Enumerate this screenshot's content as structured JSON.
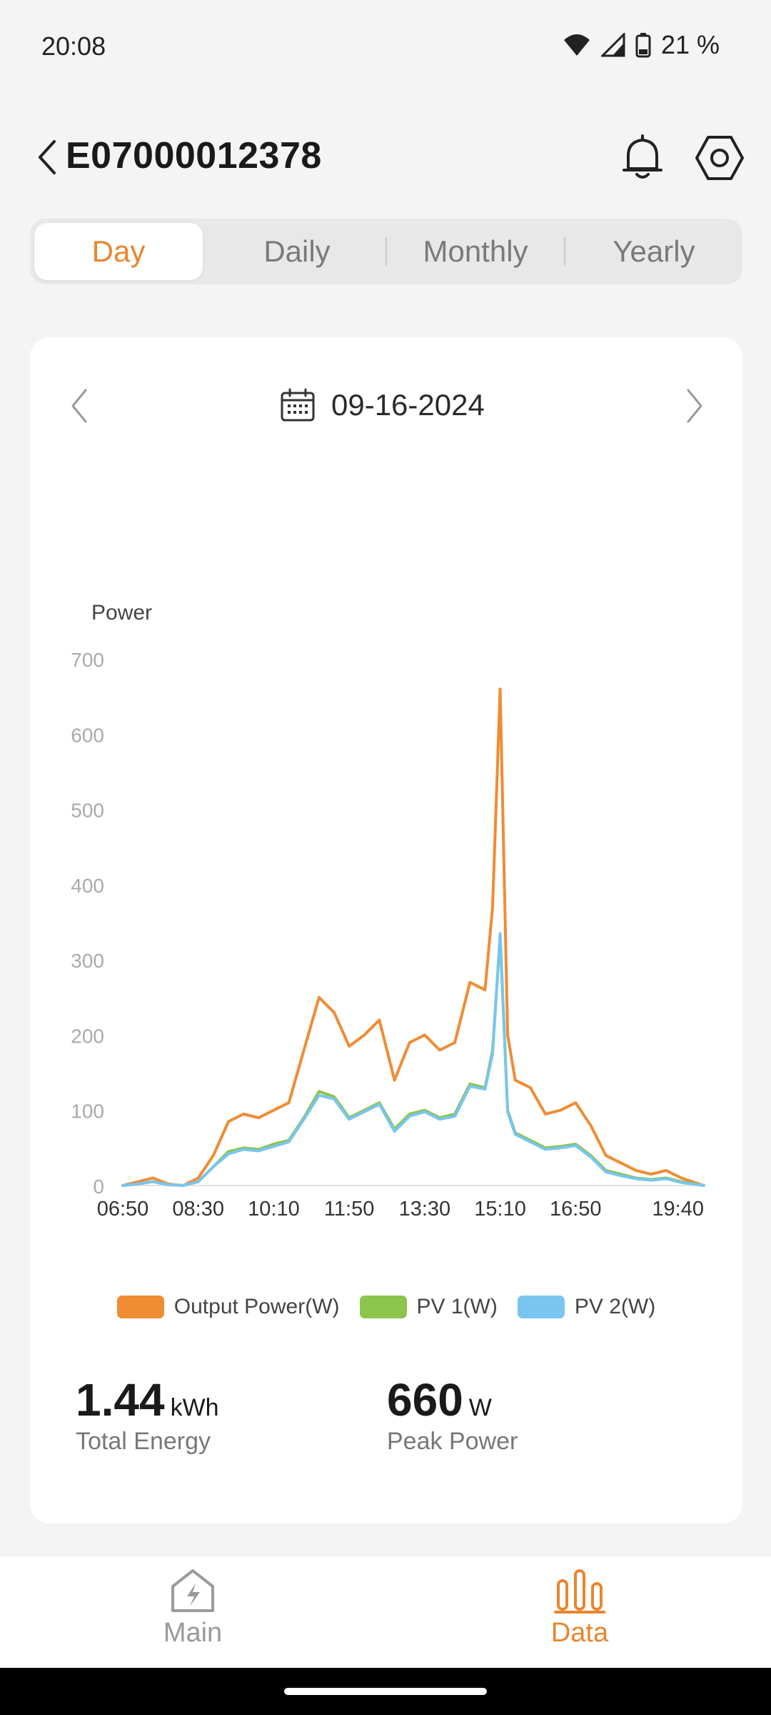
{
  "status": {
    "time": "20:08",
    "battery": "21 %"
  },
  "header": {
    "title": "E07000012378"
  },
  "tabs": [
    {
      "label": "Day",
      "active": true
    },
    {
      "label": "Daily",
      "active": false
    },
    {
      "label": "Monthly",
      "active": false
    },
    {
      "label": "Yearly",
      "active": false
    }
  ],
  "date": {
    "value": "09-16-2024"
  },
  "chart_data": {
    "type": "line",
    "ylabel": "Power",
    "ylim": [
      0,
      700
    ],
    "yticks": [
      "0",
      "100",
      "200",
      "300",
      "400",
      "500",
      "600",
      "700"
    ],
    "xtick_labels": [
      "06:50",
      "08:30",
      "10:10",
      "11:50",
      "13:30",
      "15:10",
      "16:50",
      "19:40"
    ],
    "x": [
      "06:50",
      "07:10",
      "07:30",
      "07:50",
      "08:10",
      "08:30",
      "08:50",
      "09:10",
      "09:30",
      "09:50",
      "10:10",
      "10:30",
      "10:50",
      "11:10",
      "11:30",
      "11:50",
      "12:10",
      "12:30",
      "12:50",
      "13:10",
      "13:30",
      "13:50",
      "14:10",
      "14:30",
      "14:50",
      "15:00",
      "15:10",
      "15:20",
      "15:30",
      "15:50",
      "16:10",
      "16:30",
      "16:50",
      "17:10",
      "17:30",
      "17:50",
      "18:10",
      "18:30",
      "18:50",
      "19:10",
      "19:40"
    ],
    "series": [
      {
        "name": "Output Power(W)",
        "color": "#ef8c34",
        "values": [
          0,
          5,
          10,
          2,
          0,
          10,
          40,
          85,
          95,
          90,
          100,
          110,
          180,
          250,
          230,
          185,
          200,
          220,
          140,
          190,
          200,
          180,
          190,
          270,
          260,
          370,
          660,
          200,
          140,
          130,
          95,
          100,
          110,
          80,
          40,
          30,
          20,
          15,
          20,
          10,
          0
        ]
      },
      {
        "name": "PV 1(W)",
        "color": "#8cc44c",
        "values": [
          0,
          2,
          5,
          1,
          0,
          5,
          25,
          45,
          50,
          48,
          55,
          60,
          90,
          125,
          118,
          90,
          100,
          110,
          75,
          95,
          100,
          90,
          95,
          135,
          130,
          180,
          330,
          100,
          70,
          60,
          50,
          52,
          55,
          40,
          20,
          15,
          10,
          8,
          10,
          5,
          0
        ]
      },
      {
        "name": "PV 2(W)",
        "color": "#79c5ef",
        "values": [
          0,
          2,
          5,
          1,
          0,
          5,
          25,
          42,
          48,
          46,
          52,
          58,
          88,
          120,
          115,
          88,
          98,
          108,
          72,
          92,
          98,
          88,
          92,
          132,
          128,
          175,
          335,
          98,
          68,
          58,
          48,
          50,
          53,
          38,
          18,
          13,
          9,
          7,
          9,
          4,
          0
        ]
      }
    ]
  },
  "stats": {
    "energy": {
      "value": "1.44",
      "unit": "kWh",
      "label": "Total Energy"
    },
    "peak": {
      "value": "660",
      "unit": "W",
      "label": "Peak Power"
    }
  },
  "nav": {
    "main": {
      "label": "Main",
      "icon": "home-bolt-icon"
    },
    "data": {
      "label": "Data",
      "icon": "bar-chart-icon",
      "active": true
    },
    "accent": "#e8862e"
  }
}
